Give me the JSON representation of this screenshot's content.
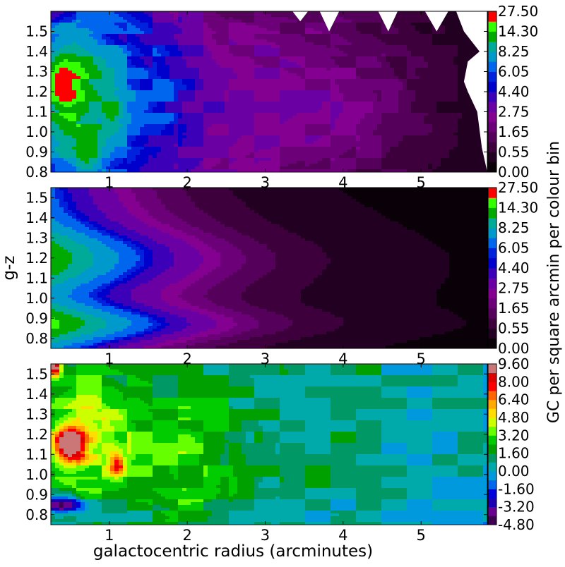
{
  "figure": {
    "xlabel": "galactocentric radius (arcminutes)",
    "ylabel": "g-z",
    "colorbar_label": "GC per square arcmin per colour bin"
  },
  "chart_data": [
    {
      "type": "heatmap",
      "panel": "top",
      "xlim": [
        0.25,
        5.85
      ],
      "ylim": [
        0.8,
        1.6
      ],
      "x_ticks": [
        1,
        2,
        3,
        4,
        5
      ],
      "x_tick_labels": [
        "1",
        "2",
        "3",
        "4",
        "5"
      ],
      "y_ticks": [
        0.8,
        0.9,
        1.0,
        1.1,
        1.2,
        1.3,
        1.4,
        1.5
      ],
      "y_tick_labels": [
        "0.8",
        "0.9",
        "1.0",
        "1.1",
        "1.2",
        "1.3",
        "1.4",
        "1.5"
      ],
      "colorbar_labels": [
        "0.00",
        "0.55",
        "1.65",
        "2.75",
        "4.40",
        "6.05",
        "8.25",
        "14.30",
        "27.50"
      ],
      "levels": [
        0,
        0.55,
        1.1,
        1.65,
        2.2,
        2.75,
        3.3,
        4.4,
        5.5,
        6.05,
        6.6,
        8.25,
        11.0,
        14.3,
        19.25,
        27.5
      ],
      "colors": [
        "#0a0007",
        "#220022",
        "#3d003d",
        "#55005a",
        "#6c0078",
        "#830091",
        "#6a00a3",
        "#3b00b8",
        "#0000cc",
        "#0022dd",
        "#0066ee",
        "#0099cc",
        "#00aa99",
        "#00aa00",
        "#33ff00",
        "#ff0000"
      ]
    },
    {
      "type": "heatmap",
      "panel": "middle",
      "xlim": [
        0.25,
        5.85
      ],
      "ylim": [
        0.75,
        1.55
      ],
      "x_ticks": [
        1,
        2,
        3,
        4,
        5
      ],
      "x_tick_labels": [
        "1",
        "2",
        "3",
        "4",
        "5"
      ],
      "y_ticks": [
        0.8,
        0.9,
        1.0,
        1.1,
        1.2,
        1.3,
        1.4,
        1.5
      ],
      "y_tick_labels": [
        "0.8",
        "0.9",
        "1.0",
        "1.1",
        "1.2",
        "1.3",
        "1.4",
        "1.5"
      ],
      "colorbar_labels": [
        "0.00",
        "0.55",
        "1.65",
        "2.75",
        "4.40",
        "6.05",
        "8.25",
        "14.30",
        "27.50"
      ],
      "levels": [
        0,
        0.55,
        1.1,
        1.65,
        2.2,
        2.75,
        3.3,
        4.4,
        5.5,
        6.05,
        6.6,
        8.25,
        11.0,
        14.3,
        19.25,
        27.5
      ],
      "colors": [
        "#0a0007",
        "#220022",
        "#3d003d",
        "#55005a",
        "#6c0078",
        "#830091",
        "#6a00a3",
        "#3b00b8",
        "#0000cc",
        "#0022dd",
        "#0066ee",
        "#0099cc",
        "#00aa99",
        "#00aa00",
        "#33ff00",
        "#ff0000"
      ]
    },
    {
      "type": "heatmap",
      "panel": "bottom",
      "xlim": [
        0.25,
        5.85
      ],
      "ylim": [
        0.75,
        1.55
      ],
      "x_ticks": [
        1,
        2,
        3,
        4,
        5
      ],
      "x_tick_labels": [
        "1",
        "2",
        "3",
        "4",
        "5"
      ],
      "y_ticks": [
        0.8,
        0.9,
        1.0,
        1.1,
        1.2,
        1.3,
        1.4,
        1.5
      ],
      "y_tick_labels": [
        "0.8",
        "0.9",
        "1.0",
        "1.1",
        "1.2",
        "1.3",
        "1.4",
        "1.5"
      ],
      "colorbar_labels": [
        "-4.80",
        "-3.20",
        "-1.60",
        "0.00",
        "1.60",
        "3.20",
        "4.80",
        "6.40",
        "8.00",
        "9.60"
      ],
      "levels": [
        -4.8,
        -4.0,
        -3.2,
        -2.4,
        -1.6,
        -0.8,
        0.0,
        0.8,
        1.6,
        2.4,
        3.2,
        4.0,
        4.8,
        5.6,
        6.4,
        7.2,
        8.0,
        8.8,
        9.6
      ],
      "colors": [
        "#3d0050",
        "#6a0090",
        "#1a00b0",
        "#0000dd",
        "#0066ee",
        "#0099dd",
        "#00aaaa",
        "#009966",
        "#00a000",
        "#00cc00",
        "#66ff00",
        "#ccff00",
        "#ffdd00",
        "#ffaa00",
        "#ff6600",
        "#ff0000",
        "#dd0000",
        "#cc7777"
      ]
    }
  ]
}
